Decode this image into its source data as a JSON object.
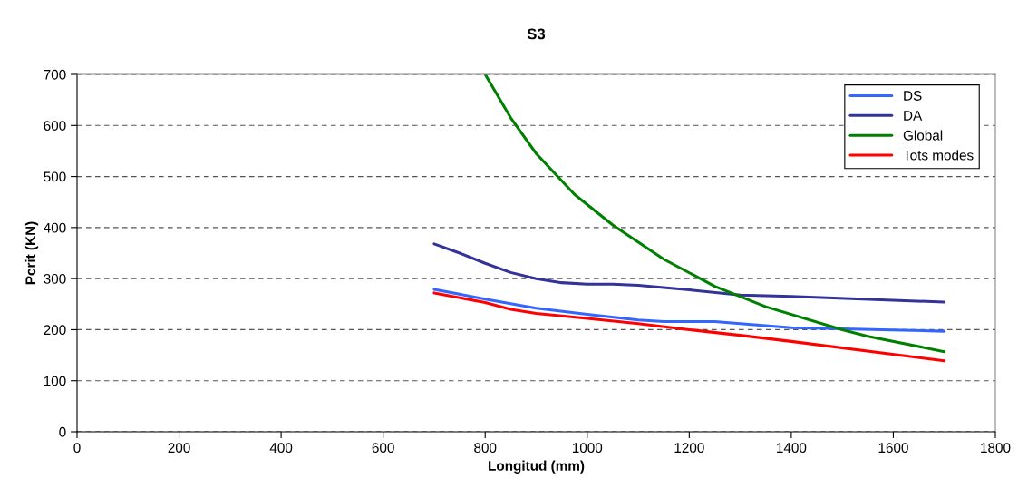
{
  "chart_data": {
    "type": "line",
    "title": "S3",
    "xlabel": "Longitud (mm)",
    "ylabel": "Pcrit (KN)",
    "xlim": [
      0,
      1800
    ],
    "xticks": [
      0,
      200,
      400,
      600,
      800,
      1000,
      1200,
      1400,
      1600,
      1800
    ],
    "ylim": [
      0,
      700
    ],
    "yticks": [
      0,
      100,
      200,
      300,
      400,
      500,
      600,
      700
    ],
    "grid": "y",
    "legend": "top right",
    "marker": "none",
    "line_style": "solid",
    "series": [
      {
        "name": "DS",
        "color": "#3366ff",
        "x": [
          700,
          800,
          900,
          1000,
          1100,
          1150,
          1250,
          1300,
          1400,
          1700
        ],
        "values": [
          279,
          260,
          242,
          230,
          219,
          216,
          216,
          212,
          204,
          197
        ]
      },
      {
        "name": "DA",
        "color": "#333399",
        "x": [
          700,
          750,
          800,
          850,
          900,
          950,
          1000,
          1050,
          1100,
          1200,
          1300,
          1400,
          1700
        ],
        "values": [
          368,
          350,
          330,
          312,
          300,
          292,
          289,
          289,
          287,
          278,
          268,
          265,
          254
        ]
      },
      {
        "name": "Global",
        "color": "#008000",
        "x": [
          800,
          850,
          900,
          975,
          1050,
          1150,
          1250,
          1350,
          1500,
          1550,
          1700
        ],
        "values": [
          700,
          615,
          545,
          465,
          405,
          338,
          285,
          245,
          200,
          187,
          157
        ]
      },
      {
        "name": "Tots modes",
        "color": "#ff0000",
        "x": [
          700,
          800,
          850,
          900,
          1000,
          1100,
          1200,
          1300,
          1400,
          1700
        ],
        "values": [
          272,
          253,
          240,
          232,
          222,
          212,
          200,
          189,
          177,
          139
        ]
      }
    ]
  }
}
